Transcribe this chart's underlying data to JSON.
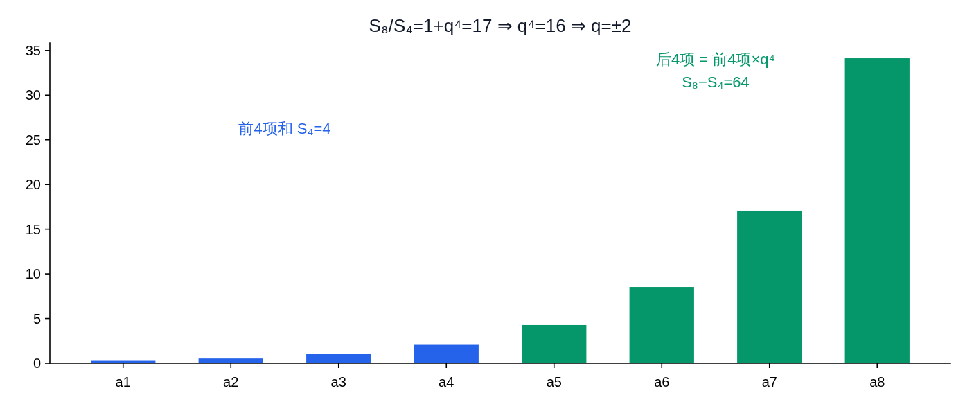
{
  "chart_data": {
    "type": "bar",
    "title": "S₈/S₄=1+q⁴=17 ⇒ q⁴=16 ⇒ q=±2",
    "categories": [
      "a1",
      "a2",
      "a3",
      "a4",
      "a5",
      "a6",
      "a7",
      "a8"
    ],
    "values": [
      0.27,
      0.53,
      1.07,
      2.13,
      4.27,
      8.53,
      17.07,
      34.13
    ],
    "colors": [
      "#2563eb",
      "#2563eb",
      "#2563eb",
      "#2563eb",
      "#059669",
      "#059669",
      "#059669",
      "#059669"
    ],
    "ylim": [
      0,
      35.84
    ],
    "yticks": [
      0,
      5,
      10,
      15,
      20,
      25,
      30,
      35
    ],
    "annotations": [
      "前4项和 S₄=4",
      "后4项 = 前4项×q⁴",
      "S₈−S₄=64"
    ]
  }
}
